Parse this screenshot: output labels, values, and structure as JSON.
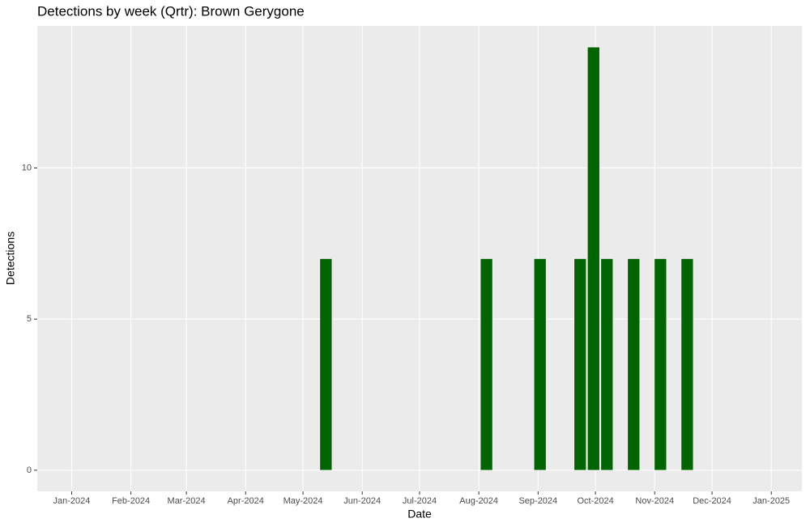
{
  "chart_data": {
    "type": "bar",
    "title": "Detections by week (Qrtr): Brown Gerygone",
    "x_label": "Date",
    "y_label": "Detections",
    "x": [
      "2024-05-13",
      "2024-08-05",
      "2024-09-02",
      "2024-09-23",
      "2024-09-30",
      "2024-10-07",
      "2024-10-21",
      "2024-11-04",
      "2024-11-18"
    ],
    "values": [
      7,
      7,
      7,
      7,
      14,
      7,
      7,
      7,
      7
    ],
    "color": "#006400",
    "xlim": [
      "2023-12-14",
      "2025-01-17"
    ],
    "xticks": [
      {
        "value": "2024-01-01",
        "label": "Jan-2024"
      },
      {
        "value": "2024-02-01",
        "label": "Feb-2024"
      },
      {
        "value": "2024-03-01",
        "label": "Mar-2024"
      },
      {
        "value": "2024-04-01",
        "label": "Apr-2024"
      },
      {
        "value": "2024-05-01",
        "label": "May-2024"
      },
      {
        "value": "2024-06-01",
        "label": "Jun-2024"
      },
      {
        "value": "2024-07-01",
        "label": "Jul-2024"
      },
      {
        "value": "2024-08-01",
        "label": "Aug-2024"
      },
      {
        "value": "2024-09-01",
        "label": "Sep-2024"
      },
      {
        "value": "2024-10-01",
        "label": "Oct-2024"
      },
      {
        "value": "2024-11-01",
        "label": "Nov-2024"
      },
      {
        "value": "2024-12-01",
        "label": "Dec-2024"
      },
      {
        "value": "2025-01-01",
        "label": "Jan-2025"
      }
    ],
    "ylim": [
      -0.7,
      14.7
    ],
    "yticks": [
      0,
      5,
      10
    ],
    "grid": true
  }
}
